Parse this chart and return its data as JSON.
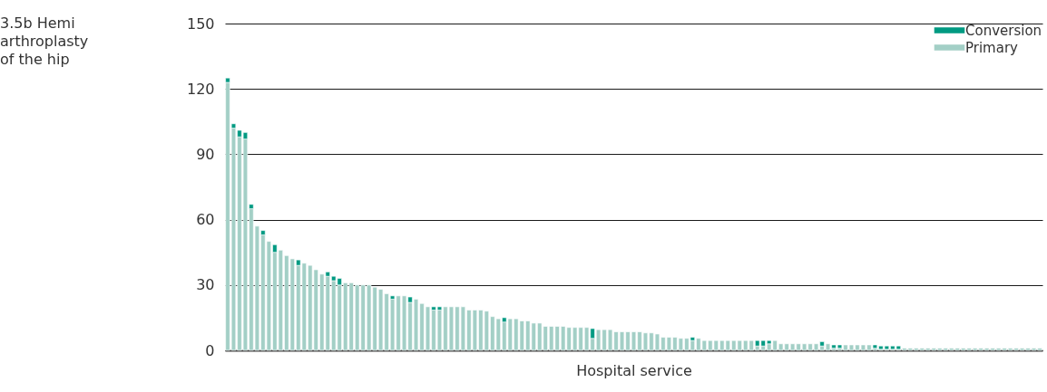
{
  "chart_data": {
    "type": "bar",
    "title": "3.5b Hemi arthroplasty of the hip",
    "xlabel": "Hospital service",
    "categories": [
      null,
      null,
      null,
      null,
      null,
      null,
      null,
      null,
      null,
      null,
      null,
      null,
      null,
      null,
      null,
      null,
      null,
      null,
      null,
      null,
      null,
      null,
      null,
      null,
      null,
      null,
      null,
      null,
      null,
      null,
      null,
      null,
      null,
      null,
      null,
      null,
      null,
      null,
      null,
      null,
      null,
      null,
      null,
      null,
      null,
      null,
      null,
      null,
      null,
      null,
      null,
      null,
      null,
      null,
      null,
      null,
      null,
      null,
      null,
      null,
      null,
      null,
      null,
      null,
      null,
      null,
      null,
      null,
      null,
      null,
      null,
      null,
      null,
      null,
      null,
      null,
      null,
      null,
      null,
      null,
      null,
      null,
      null,
      null,
      null,
      null,
      null,
      null,
      null,
      null,
      null,
      null,
      null,
      null,
      null,
      null,
      null,
      null,
      null,
      null,
      null,
      null,
      null,
      null,
      null,
      null,
      null,
      null,
      null,
      null,
      null,
      null,
      null,
      null,
      null,
      null,
      null,
      null,
      null,
      null,
      null,
      null,
      null,
      null,
      null,
      null,
      null,
      null,
      null,
      null,
      null,
      null,
      null,
      null,
      null,
      null,
      null,
      null,
      null
    ],
    "stacked": true,
    "series": [
      {
        "name": "Primary",
        "color": "#a3cfc6",
        "values": [
          123,
          102,
          98,
          97,
          65,
          57,
          53,
          50,
          45,
          46,
          43.5,
          42,
          39,
          40,
          39,
          37,
          35,
          34,
          32,
          30,
          31,
          31,
          30,
          30,
          30,
          29,
          28,
          26,
          23.5,
          25,
          25,
          22,
          23.5,
          21.5,
          20,
          18.5,
          18.5,
          20,
          20,
          20,
          20,
          18.5,
          18.5,
          18.5,
          18,
          15.5,
          14.5,
          13,
          14.5,
          14.5,
          13.5,
          13.5,
          12.5,
          12.5,
          11,
          11,
          11,
          11,
          10.5,
          10.5,
          10.5,
          10.5,
          5.5,
          9.5,
          9.5,
          9.5,
          8.5,
          8.5,
          8.5,
          8.5,
          8.5,
          8,
          8,
          7.5,
          6,
          6,
          6,
          5.5,
          5.5,
          4.5,
          5.5,
          4.5,
          4.5,
          4.5,
          4.5,
          4.5,
          4.5,
          4.5,
          4.5,
          4.5,
          2,
          2,
          3,
          4.5,
          3,
          3,
          3,
          3,
          3,
          3,
          3,
          2,
          3,
          1,
          1,
          2.5,
          2.5,
          2.5,
          2.5,
          2.5,
          1,
          0.5,
          0.5,
          0.5,
          0.5,
          1,
          1,
          1,
          1,
          1,
          1,
          1,
          1,
          1,
          1,
          1,
          1,
          1,
          1,
          1,
          1,
          1,
          1,
          1,
          1,
          1,
          1,
          1,
          1
        ]
      },
      {
        "name": "Conversion",
        "color": "#009a82",
        "values": [
          2,
          2,
          3,
          3,
          2,
          null,
          2,
          null,
          3.5,
          null,
          null,
          null,
          2.5,
          null,
          null,
          null,
          null,
          2,
          2,
          3,
          null,
          null,
          null,
          null,
          null,
          null,
          null,
          null,
          1.5,
          null,
          null,
          2.5,
          null,
          null,
          null,
          1.5,
          1.5,
          null,
          null,
          null,
          null,
          null,
          null,
          null,
          null,
          null,
          null,
          2,
          null,
          null,
          null,
          null,
          null,
          null,
          null,
          null,
          null,
          null,
          null,
          null,
          null,
          null,
          4.5,
          null,
          null,
          null,
          null,
          null,
          null,
          null,
          null,
          null,
          null,
          null,
          null,
          null,
          null,
          null,
          null,
          1.5,
          null,
          null,
          null,
          null,
          null,
          null,
          null,
          null,
          null,
          null,
          2.5,
          2.5,
          1.5,
          null,
          null,
          null,
          null,
          null,
          null,
          null,
          null,
          2,
          null,
          1.5,
          1.5,
          null,
          null,
          null,
          null,
          null,
          1.5,
          1.5,
          1.5,
          1.5,
          1.5,
          null,
          null,
          null,
          null,
          null,
          null,
          null,
          null,
          null,
          null,
          null,
          null,
          null,
          null,
          null,
          null,
          null,
          null,
          null,
          null,
          null,
          null,
          null,
          null
        ]
      }
    ],
    "ylim": [
      0,
      150
    ],
    "yticks": [
      0,
      30,
      60,
      90,
      120,
      150
    ],
    "grid": "y",
    "legend": "top right"
  }
}
